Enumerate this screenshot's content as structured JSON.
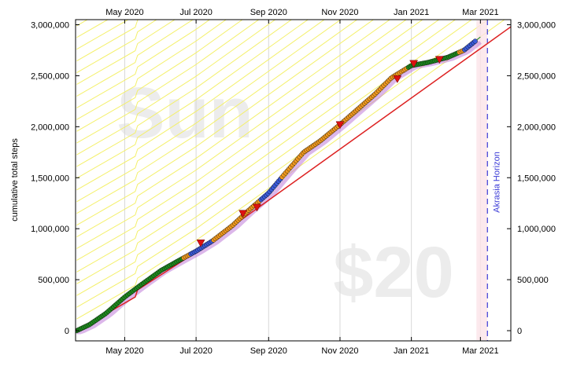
{
  "chart_data": {
    "type": "line",
    "title": "",
    "ylabel": "cumulative total steps",
    "xlabel": "",
    "x_ticks": [
      "May 2020",
      "Jul 2020",
      "Sep 2020",
      "Nov 2020",
      "Jan 2021",
      "Mar 2021"
    ],
    "x_tick_dates": [
      "2020-05-01",
      "2020-07-01",
      "2020-09-01",
      "2020-11-01",
      "2021-01-01",
      "2021-03-01"
    ],
    "xlim": [
      "2020-03-20",
      "2021-03-27"
    ],
    "y_ticks": [
      "0",
      "500,000",
      "1,000,000",
      "1,500,000",
      "2,000,000",
      "2,500,000",
      "3,000,000"
    ],
    "ylim": [
      -100000,
      3050000
    ],
    "grid": "vertical",
    "watermark_goal": "Sun",
    "watermark_pledge": "$20",
    "akrasia_horizon_label": "Akrasia Horizon",
    "akrasia_horizon_date": "2021-03-07",
    "colors": {
      "bright_red_road": "#dd2222",
      "data_green": "#1f8a1f",
      "data_orange": "#f09a20",
      "data_blue": "#3b5bd9",
      "derail_red": "#dd1111",
      "guideline_yellow": "#f4f06a",
      "horizon_blue": "#3a3ad6",
      "moving_avg_purple": "#c07bd8"
    },
    "series": [
      {
        "name": "",
        "role": "datapoints",
        "x": [
          "2020-03-21",
          "2020-04-01",
          "2020-04-15",
          "2020-05-01",
          "2020-05-15",
          "2020-06-01",
          "2020-06-15",
          "2020-07-01",
          "2020-07-15",
          "2020-08-01",
          "2020-08-15",
          "2020-09-01",
          "2020-09-15",
          "2020-10-01",
          "2020-10-15",
          "2020-11-01",
          "2020-11-15",
          "2020-12-01",
          "2020-12-15",
          "2021-01-01",
          "2021-01-15",
          "2021-02-01",
          "2021-02-15",
          "2021-03-01"
        ],
        "y": [
          0,
          60000,
          170000,
          330000,
          450000,
          590000,
          680000,
          780000,
          880000,
          1030000,
          1180000,
          1350000,
          1540000,
          1750000,
          1860000,
          2020000,
          2160000,
          2320000,
          2480000,
          2600000,
          2630000,
          2680000,
          2750000,
          2880000
        ]
      },
      {
        "name": "",
        "role": "bright_red_line",
        "x": [
          "2020-03-21",
          "2020-05-10",
          "2020-05-12",
          "2020-07-01",
          "2021-03-27"
        ],
        "y": [
          0,
          330000,
          400000,
          770000,
          2980000
        ]
      }
    ],
    "derailments": {
      "x": [
        "2020-07-05",
        "2020-08-10",
        "2020-08-22",
        "2020-11-01",
        "2020-12-20",
        "2021-01-03",
        "2021-01-25"
      ],
      "y": [
        860000,
        1150000,
        1210000,
        2020000,
        2470000,
        2620000,
        2660000
      ]
    }
  }
}
